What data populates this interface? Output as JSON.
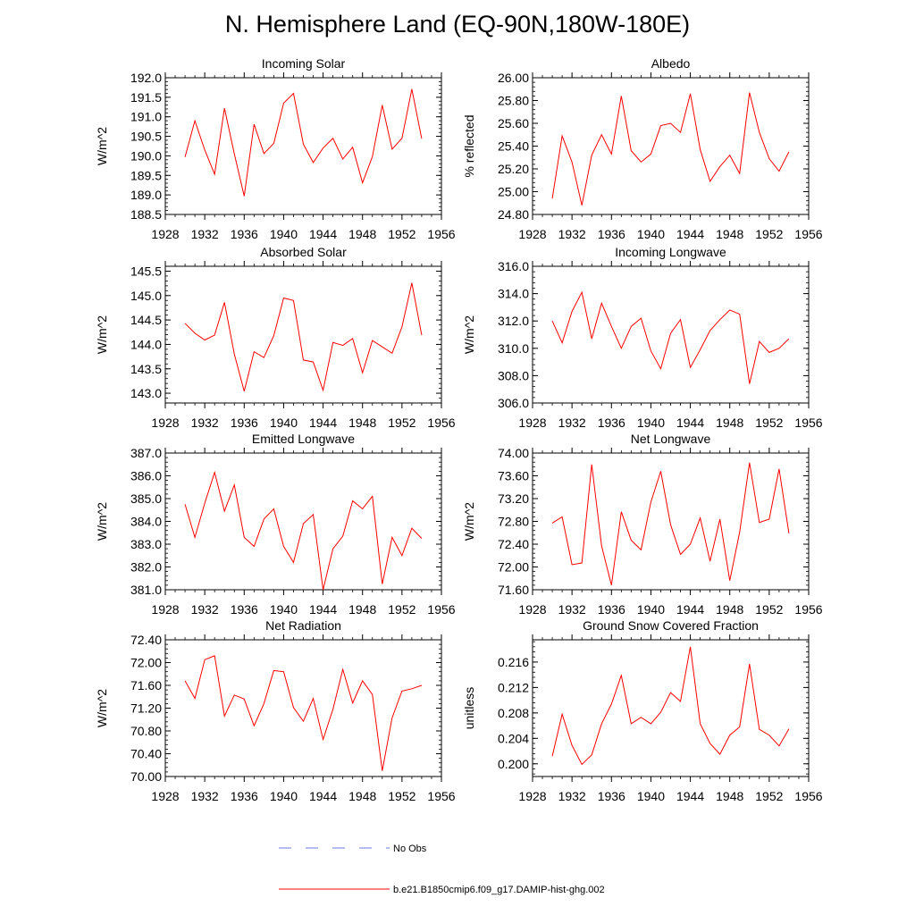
{
  "title": "N. Hemisphere Land (EQ-90N,180W-180E)",
  "colors": {
    "model_line": "#ff0000",
    "obs_line": "#3b4fd6",
    "axis": "#000000"
  },
  "legend": {
    "obs_label": "No Obs",
    "model_label": "b.e21.B1850cmip6.f09_g17.DAMIP-hist-ghg.002"
  },
  "chart_data": [
    {
      "type": "line",
      "title": "Incoming Solar",
      "xlabel": "",
      "ylabel": "W/m^2",
      "xlim": [
        1928,
        1956
      ],
      "ylim": [
        188.5,
        192.0
      ],
      "xticks": [
        1928,
        1932,
        1936,
        1940,
        1944,
        1948,
        1952,
        1956
      ],
      "xtick_labels": [
        "1928",
        "1932",
        "1936",
        "1940",
        "1944",
        "1948",
        "1952",
        "1956"
      ],
      "yticks": [
        188.5,
        189.0,
        189.5,
        190.0,
        190.5,
        191.0,
        191.5,
        192.0
      ],
      "ytick_labels": [
        "188.5",
        "189.0",
        "189.5",
        "190.0",
        "190.5",
        "191.0",
        "191.5",
        "192.0"
      ],
      "x": [
        1930,
        1931,
        1932,
        1933,
        1934,
        1935,
        1936,
        1937,
        1938,
        1939,
        1940,
        1941,
        1942,
        1943,
        1944,
        1945,
        1946,
        1947,
        1948,
        1949,
        1950,
        1951,
        1952,
        1953,
        1954
      ],
      "series": [
        {
          "name": "b.e21.B1850cmip6.f09_g17.DAMIP-hist-ghg.002",
          "values": [
            189.97,
            190.9,
            190.15,
            189.53,
            191.22,
            190.05,
            188.97,
            190.81,
            190.06,
            190.32,
            191.35,
            191.6,
            190.3,
            189.83,
            190.2,
            190.45,
            189.92,
            190.22,
            189.31,
            189.98,
            191.3,
            190.17,
            190.45,
            191.71,
            190.44
          ]
        }
      ]
    },
    {
      "type": "line",
      "title": "Albedo",
      "xlabel": "",
      "ylabel": "% reflected",
      "xlim": [
        1928,
        1956
      ],
      "ylim": [
        24.8,
        26.0
      ],
      "xticks": [
        1928,
        1932,
        1936,
        1940,
        1944,
        1948,
        1952,
        1956
      ],
      "xtick_labels": [
        "1928",
        "1932",
        "1936",
        "1940",
        "1944",
        "1948",
        "1952",
        "1956"
      ],
      "yticks": [
        24.8,
        25.0,
        25.2,
        25.4,
        25.6,
        25.8,
        26.0
      ],
      "ytick_labels": [
        "24.80",
        "25.00",
        "25.20",
        "25.40",
        "25.60",
        "25.80",
        "26.00"
      ],
      "x": [
        1930,
        1931,
        1932,
        1933,
        1934,
        1935,
        1936,
        1937,
        1938,
        1939,
        1940,
        1941,
        1942,
        1943,
        1944,
        1945,
        1946,
        1947,
        1948,
        1949,
        1950,
        1951,
        1952,
        1953,
        1954
      ],
      "series": [
        {
          "name": "b.e21.B1850cmip6.f09_g17.DAMIP-hist-ghg.002",
          "values": [
            24.94,
            25.49,
            25.26,
            24.88,
            25.32,
            25.5,
            25.33,
            25.84,
            25.36,
            25.26,
            25.33,
            25.58,
            25.6,
            25.52,
            25.86,
            25.37,
            25.09,
            25.22,
            25.32,
            25.16,
            25.87,
            25.52,
            25.29,
            25.18,
            25.35
          ]
        }
      ]
    },
    {
      "type": "line",
      "title": "Absorbed Solar",
      "xlabel": "",
      "ylabel": "W/m^2",
      "xlim": [
        1928,
        1956
      ],
      "ylim": [
        142.8,
        145.6
      ],
      "xticks": [
        1928,
        1932,
        1936,
        1940,
        1944,
        1948,
        1952,
        1956
      ],
      "xtick_labels": [
        "1928",
        "1932",
        "1936",
        "1940",
        "1944",
        "1948",
        "1952",
        "1956"
      ],
      "yticks": [
        143.0,
        143.5,
        144.0,
        144.5,
        145.0,
        145.5
      ],
      "ytick_labels": [
        "143.0",
        "143.5",
        "144.0",
        "144.5",
        "145.0",
        "145.5"
      ],
      "x": [
        1930,
        1931,
        1932,
        1933,
        1934,
        1935,
        1936,
        1937,
        1938,
        1939,
        1940,
        1941,
        1942,
        1943,
        1944,
        1945,
        1946,
        1947,
        1948,
        1949,
        1950,
        1951,
        1952,
        1953,
        1954
      ],
      "series": [
        {
          "name": "b.e21.B1850cmip6.f09_g17.DAMIP-hist-ghg.002",
          "values": [
            144.43,
            144.23,
            144.09,
            144.19,
            144.86,
            143.8,
            143.04,
            143.85,
            143.73,
            144.18,
            144.95,
            144.9,
            143.68,
            143.64,
            143.06,
            144.04,
            143.98,
            144.12,
            143.42,
            144.08,
            143.95,
            143.82,
            144.36,
            145.26,
            144.19
          ]
        }
      ]
    },
    {
      "type": "line",
      "title": "Incoming Longwave",
      "xlabel": "",
      "ylabel": "W/m^2",
      "xlim": [
        1928,
        1956
      ],
      "ylim": [
        306.0,
        316.0
      ],
      "xticks": [
        1928,
        1932,
        1936,
        1940,
        1944,
        1948,
        1952,
        1956
      ],
      "xtick_labels": [
        "1928",
        "1932",
        "1936",
        "1940",
        "1944",
        "1948",
        "1952",
        "1956"
      ],
      "yticks": [
        306.0,
        308.0,
        310.0,
        312.0,
        314.0,
        316.0
      ],
      "ytick_labels": [
        "306.0",
        "308.0",
        "310.0",
        "312.0",
        "314.0",
        "316.0"
      ],
      "x": [
        1930,
        1931,
        1932,
        1933,
        1934,
        1935,
        1936,
        1937,
        1938,
        1939,
        1940,
        1941,
        1942,
        1943,
        1944,
        1945,
        1946,
        1947,
        1948,
        1949,
        1950,
        1951,
        1952,
        1953,
        1954
      ],
      "series": [
        {
          "name": "b.e21.B1850cmip6.f09_g17.DAMIP-hist-ghg.002",
          "values": [
            312.0,
            310.4,
            312.7,
            314.1,
            310.7,
            313.3,
            311.6,
            310.0,
            311.6,
            312.2,
            309.8,
            308.5,
            311.1,
            312.1,
            308.6,
            309.9,
            311.3,
            312.1,
            312.8,
            312.5,
            307.4,
            310.5,
            309.7,
            310.0,
            310.7
          ]
        }
      ]
    },
    {
      "type": "line",
      "title": "Emitted Longwave",
      "xlabel": "",
      "ylabel": "W/m^2",
      "xlim": [
        1928,
        1956
      ],
      "ylim": [
        381.0,
        387.0
      ],
      "xticks": [
        1928,
        1932,
        1936,
        1940,
        1944,
        1948,
        1952,
        1956
      ],
      "xtick_labels": [
        "1928",
        "1932",
        "1936",
        "1940",
        "1944",
        "1948",
        "1952",
        "1956"
      ],
      "yticks": [
        381.0,
        382.0,
        383.0,
        384.0,
        385.0,
        386.0,
        387.0
      ],
      "ytick_labels": [
        "381.0",
        "382.0",
        "383.0",
        "384.0",
        "385.0",
        "386.0",
        "387.0"
      ],
      "x": [
        1930,
        1931,
        1932,
        1933,
        1934,
        1935,
        1936,
        1937,
        1938,
        1939,
        1940,
        1941,
        1942,
        1943,
        1944,
        1945,
        1946,
        1947,
        1948,
        1949,
        1950,
        1951,
        1952,
        1953,
        1954
      ],
      "series": [
        {
          "name": "b.e21.B1850cmip6.f09_g17.DAMIP-hist-ghg.002",
          "values": [
            384.75,
            383.3,
            384.8,
            386.15,
            384.45,
            385.6,
            383.3,
            382.9,
            384.1,
            384.55,
            382.9,
            382.2,
            383.9,
            384.3,
            381.0,
            382.8,
            383.35,
            384.9,
            384.55,
            385.1,
            381.25,
            383.3,
            382.5,
            383.7,
            383.25
          ]
        }
      ]
    },
    {
      "type": "line",
      "title": "Net Longwave",
      "xlabel": "",
      "ylabel": "W/m^2",
      "xlim": [
        1928,
        1956
      ],
      "ylim": [
        71.6,
        74.0
      ],
      "xticks": [
        1928,
        1932,
        1936,
        1940,
        1944,
        1948,
        1952,
        1956
      ],
      "xtick_labels": [
        "1928",
        "1932",
        "1936",
        "1940",
        "1944",
        "1948",
        "1952",
        "1956"
      ],
      "yticks": [
        71.6,
        72.0,
        72.4,
        72.8,
        73.2,
        73.6,
        74.0
      ],
      "ytick_labels": [
        "71.60",
        "72.00",
        "72.40",
        "72.80",
        "73.20",
        "73.60",
        "74.00"
      ],
      "x": [
        1930,
        1931,
        1932,
        1933,
        1934,
        1935,
        1936,
        1937,
        1938,
        1939,
        1940,
        1941,
        1942,
        1943,
        1944,
        1945,
        1946,
        1947,
        1948,
        1949,
        1950,
        1951,
        1952,
        1953,
        1954
      ],
      "series": [
        {
          "name": "b.e21.B1850cmip6.f09_g17.DAMIP-hist-ghg.002",
          "values": [
            72.77,
            72.88,
            72.04,
            72.07,
            73.8,
            72.37,
            71.68,
            72.97,
            72.47,
            72.3,
            73.14,
            73.68,
            72.74,
            72.22,
            72.4,
            72.86,
            72.1,
            72.84,
            71.76,
            72.61,
            73.83,
            72.78,
            72.84,
            73.72,
            72.59
          ]
        }
      ]
    },
    {
      "type": "line",
      "title": "Net Radiation",
      "xlabel": "",
      "ylabel": "W/m^2",
      "xlim": [
        1928,
        1956
      ],
      "ylim": [
        70.0,
        72.4
      ],
      "xticks": [
        1928,
        1932,
        1936,
        1940,
        1944,
        1948,
        1952,
        1956
      ],
      "xtick_labels": [
        "1928",
        "1932",
        "1936",
        "1940",
        "1944",
        "1948",
        "1952",
        "1956"
      ],
      "yticks": [
        70.0,
        70.4,
        70.8,
        71.2,
        71.6,
        72.0,
        72.4
      ],
      "ytick_labels": [
        "70.00",
        "70.40",
        "70.80",
        "71.20",
        "71.60",
        "72.00",
        "72.40"
      ],
      "x": [
        1930,
        1931,
        1932,
        1933,
        1934,
        1935,
        1936,
        1937,
        1938,
        1939,
        1940,
        1941,
        1942,
        1943,
        1944,
        1945,
        1946,
        1947,
        1948,
        1949,
        1950,
        1951,
        1952,
        1953,
        1954
      ],
      "series": [
        {
          "name": "b.e21.B1850cmip6.f09_g17.DAMIP-hist-ghg.002",
          "values": [
            71.68,
            71.37,
            72.05,
            72.12,
            71.06,
            71.43,
            71.36,
            70.89,
            71.28,
            71.86,
            71.84,
            71.21,
            70.97,
            71.37,
            70.65,
            71.18,
            71.88,
            71.29,
            71.68,
            71.44,
            70.1,
            71.03,
            71.5,
            71.54,
            71.6
          ]
        }
      ]
    },
    {
      "type": "line",
      "title": "Ground Snow Covered Fraction",
      "xlabel": "",
      "ylabel": "unitless",
      "xlim": [
        1928,
        1956
      ],
      "ylim": [
        0.198,
        0.2195
      ],
      "xticks": [
        1928,
        1932,
        1936,
        1940,
        1944,
        1948,
        1952,
        1956
      ],
      "xtick_labels": [
        "1928",
        "1932",
        "1936",
        "1940",
        "1944",
        "1948",
        "1952",
        "1956"
      ],
      "yticks": [
        0.2,
        0.204,
        0.208,
        0.212,
        0.216
      ],
      "ytick_labels": [
        "0.200",
        "0.204",
        "0.208",
        "0.212",
        "0.216"
      ],
      "x": [
        1930,
        1931,
        1932,
        1933,
        1934,
        1935,
        1936,
        1937,
        1938,
        1939,
        1940,
        1941,
        1942,
        1943,
        1944,
        1945,
        1946,
        1947,
        1948,
        1949,
        1950,
        1951,
        1952,
        1953,
        1954
      ],
      "series": [
        {
          "name": "b.e21.B1850cmip6.f09_g17.DAMIP-hist-ghg.002",
          "values": [
            0.2012,
            0.2078,
            0.2029,
            0.1999,
            0.2014,
            0.2063,
            0.2094,
            0.2139,
            0.2063,
            0.2073,
            0.2063,
            0.2081,
            0.2112,
            0.2098,
            0.2184,
            0.2063,
            0.2032,
            0.2015,
            0.2045,
            0.2058,
            0.2157,
            0.2054,
            0.2045,
            0.2028,
            0.2055
          ]
        }
      ]
    }
  ]
}
